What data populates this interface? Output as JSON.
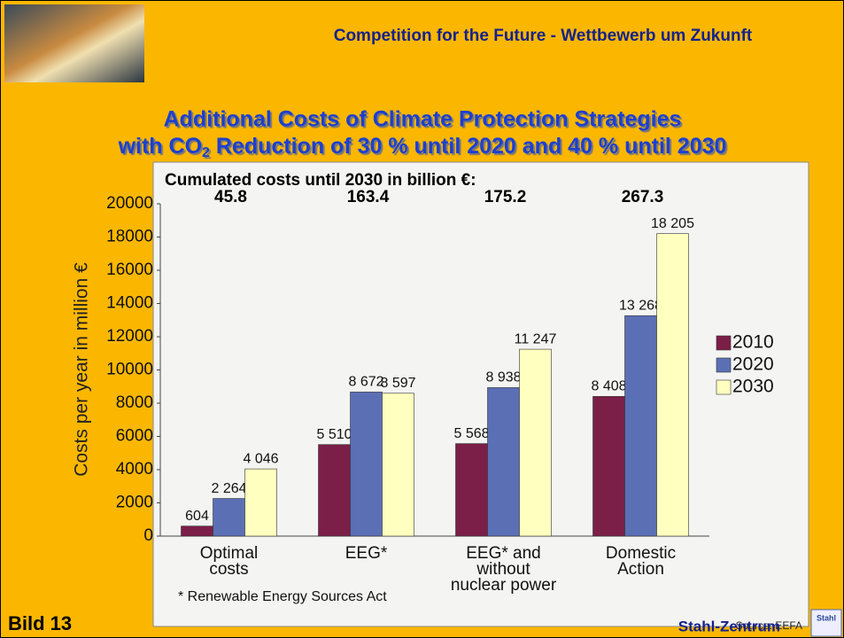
{
  "slide": {
    "header": "Competition for the Future - Wettbewerb um Zukunft",
    "footer_left": "Bild 13",
    "footer_right": "Stahl-Zentrum",
    "logo_text": "Stahl"
  },
  "chart_data": {
    "type": "bar",
    "title": "Additional Costs of Climate Protection Strategies",
    "subtitle_parts": [
      "with CO",
      "2",
      " Reduction of 30 % until 2020 and 40 % until 2030"
    ],
    "annotation": "Cumulated costs until 2030 in billion €:",
    "cumulated_costs": [
      45.8,
      163.4,
      175.2,
      267.3
    ],
    "y_label": "Costs per year in million €",
    "footnote": "* Renewable Energy Sources Act",
    "source": "Source: EEFA",
    "categories": [
      "Optimal\ncosts",
      "EEG*",
      "EEG* and\nwithout\nnuclear power",
      "Domestic\nAction"
    ],
    "series": [
      {
        "name": "2010",
        "color": "#7b1f48",
        "values": [
          604,
          5510,
          5568,
          8408
        ],
        "value_labels": [
          "604",
          "5 510",
          "5 568",
          "8 408"
        ]
      },
      {
        "name": "2020",
        "color": "#5b6fb5",
        "values": [
          2264,
          8672,
          8938,
          13268
        ],
        "value_labels": [
          "2 264",
          "8 672",
          "8 938",
          "13 268"
        ]
      },
      {
        "name": "2030",
        "color": "#ffffc0",
        "values": [
          4046,
          8597,
          11247,
          18205
        ],
        "value_labels": [
          "4 046",
          "8 597",
          "11 247",
          "18 205"
        ]
      }
    ],
    "ylim": [
      0,
      20000
    ],
    "yticks": [
      0,
      2000,
      4000,
      6000,
      8000,
      10000,
      12000,
      14000,
      16000,
      18000,
      20000
    ],
    "grid": false,
    "legend": "right"
  }
}
